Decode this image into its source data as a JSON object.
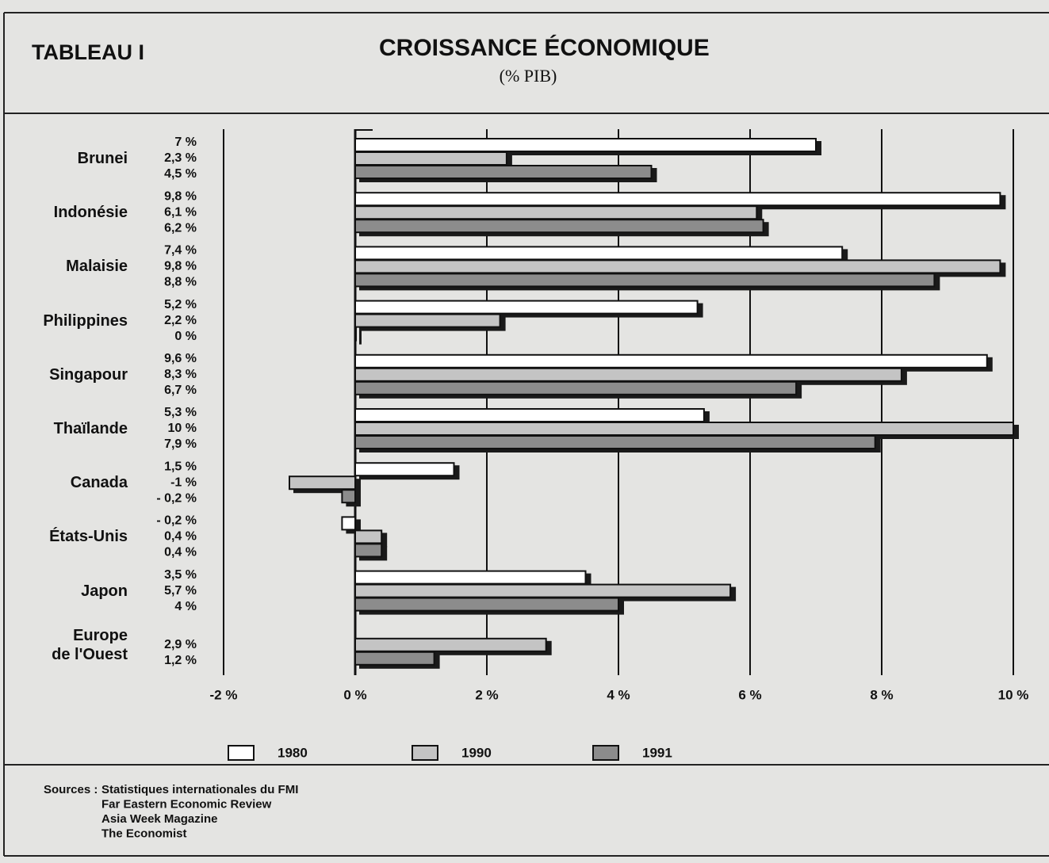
{
  "chart_data": {
    "type": "hbar",
    "label": "TABLEAU I",
    "title": "CROISSANCE ÉCONOMIQUE",
    "subtitle": "(% PIB)",
    "categories": [
      "Brunei",
      "Indonésie",
      "Malaisie",
      "Philippines",
      "Singapour",
      "Thaïlande",
      "Canada",
      "États-Unis",
      "Japon",
      "Europe\nde l'Ouest"
    ],
    "series": [
      {
        "name": "1980",
        "color": "#ffffff",
        "values": [
          7,
          9.8,
          7.4,
          5.2,
          9.6,
          5.3,
          1.5,
          -0.2,
          3.5,
          null
        ],
        "value_labels": [
          "7 %",
          "9,8 %",
          "7,4 %",
          "5,2 %",
          "9,6 %",
          "5,3 %",
          "1,5 %",
          "- 0,2 %",
          "3,5 %",
          null
        ]
      },
      {
        "name": "1990",
        "color": "#c4c4c4",
        "values": [
          2.3,
          6.1,
          9.8,
          2.2,
          8.3,
          10,
          -1,
          0.4,
          5.7,
          2.9
        ],
        "value_labels": [
          "2,3 %",
          "6,1 %",
          "9,8 %",
          "2,2 %",
          "8,3 %",
          "10 %",
          "-1 %",
          "0,4 %",
          "5,7 %",
          "2,9 %"
        ]
      },
      {
        "name": "1991",
        "color": "#8c8c8c",
        "values": [
          4.5,
          6.2,
          8.8,
          0,
          6.7,
          7.9,
          -0.2,
          0.4,
          4,
          1.2
        ],
        "value_labels": [
          "4,5 %",
          "6,2 %",
          "8,8 %",
          "0 %",
          "6,7 %",
          "7,9 %",
          "- 0,2 %",
          "0,4 %",
          "4 %",
          "1,2 %"
        ]
      }
    ],
    "xlim": [
      -2,
      10
    ],
    "xticks": [
      {
        "value": -2,
        "label": "-2 %"
      },
      {
        "value": 0,
        "label": "0 %"
      },
      {
        "value": 2,
        "label": "2 %"
      },
      {
        "value": 4,
        "label": "4 %"
      },
      {
        "value": 6,
        "label": "6 %"
      },
      {
        "value": 8,
        "label": "8 %"
      },
      {
        "value": 10,
        "label": "10 %"
      }
    ],
    "grid": true,
    "sources": {
      "label": "Sources :",
      "items": [
        "Statistiques internationales du FMI",
        "Far Eastern Economic Review",
        "Asia Week Magazine",
        "The Economist"
      ]
    }
  }
}
